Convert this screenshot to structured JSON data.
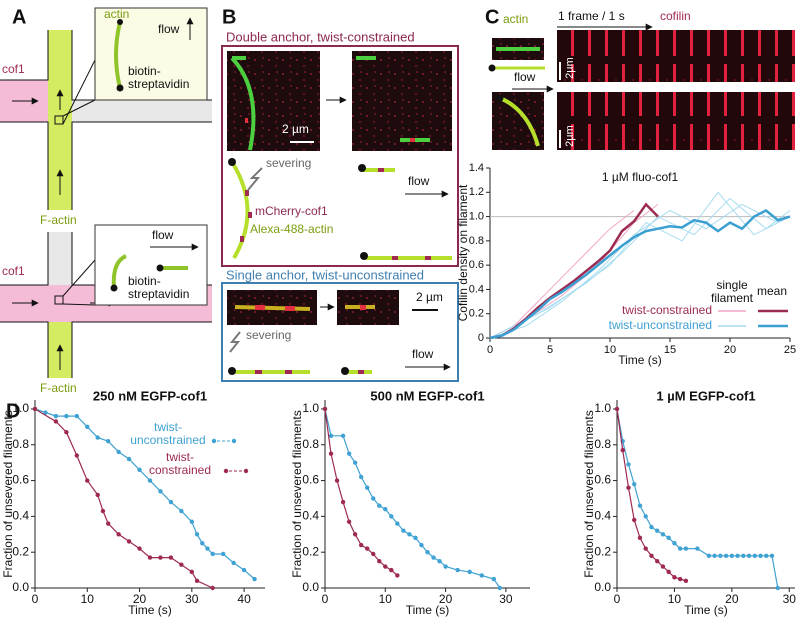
{
  "panel_labels": [
    "A",
    "B",
    "C",
    "D"
  ],
  "panel_a": {
    "top": {
      "actin": "actin",
      "flow": "flow",
      "anchor": "biotin-\nstreptavidin",
      "cof1": "cof1",
      "f_actin": "F-actin"
    },
    "bottom": {
      "flow": "flow",
      "anchor": "biotin-\nstreptavidin",
      "cof1": "cof1",
      "f_actin": "F-actin"
    }
  },
  "panel_b": {
    "double": {
      "title": "Double anchor, twist-constrained",
      "scale": "2 µm",
      "severing": "severing",
      "cofilin": "mCherry-cof1",
      "actin": "Alexa-488-actin",
      "flow": "flow"
    },
    "single": {
      "title": "Single anchor, twist-unconstrained",
      "scale": "2 µm",
      "severing": "severing",
      "flow": "flow"
    }
  },
  "panel_c": {
    "actin": "actin",
    "flow": "flow",
    "frame_rate": "1 frame / 1 s",
    "cofilin": "cofilin",
    "scale_top": "2µm",
    "scale_bottom": "2µm"
  },
  "chart_data": [
    {
      "type": "line",
      "title": "1 µM fluo-cof1",
      "x_label": "Time (s)",
      "y_label": "Cofilin density on filament",
      "xlim": [
        0,
        25
      ],
      "ylim": [
        0,
        1.4
      ],
      "xticks": [
        0,
        5,
        10,
        15,
        20,
        25
      ],
      "yticks": [
        0,
        0.2,
        0.4,
        0.6,
        0.8,
        {
          "value": 1,
          "label": "1.0"
        },
        1.2,
        1.4
      ],
      "hline": 1,
      "legend_titles": [
        "single\nfilament",
        "mean"
      ],
      "series": [
        {
          "name": "twist-constrained",
          "color": "#9b2b52",
          "single_color": "#f0a6c6",
          "x": [
            0,
            1,
            2,
            3,
            4,
            5,
            6,
            7,
            8,
            9,
            10,
            11,
            12,
            13,
            14
          ],
          "values": [
            0,
            0.02,
            0.08,
            0.16,
            0.25,
            0.33,
            0.4,
            0.47,
            0.55,
            0.63,
            0.72,
            0.88,
            0.96,
            1.1,
            1.0
          ],
          "single_filaments": [
            {
              "x": [
                0,
                2,
                4,
                6,
                8,
                10,
                12
              ],
              "values": [
                0,
                0.1,
                0.3,
                0.5,
                0.7,
                0.9,
                1.05
              ]
            },
            {
              "x": [
                0,
                3,
                6,
                9,
                12,
                14
              ],
              "values": [
                0,
                0.15,
                0.35,
                0.6,
                0.95,
                1.1
              ]
            }
          ]
        },
        {
          "name": "twist-unconstrained",
          "color": "#3c9fd2",
          "single_color": "#a6dcef",
          "x": [
            0,
            1,
            2,
            3,
            4,
            5,
            6,
            7,
            8,
            9,
            10,
            11,
            12,
            13,
            14,
            15,
            16,
            17,
            18,
            19,
            20,
            21,
            22,
            23,
            24,
            25
          ],
          "values": [
            0,
            0.02,
            0.07,
            0.15,
            0.23,
            0.32,
            0.38,
            0.45,
            0.52,
            0.6,
            0.68,
            0.76,
            0.83,
            0.88,
            0.9,
            0.92,
            0.91,
            0.97,
            0.95,
            0.88,
            0.95,
            0.9,
            1.0,
            1.05,
            0.97,
            1.0
          ],
          "single_filaments": [
            {
              "x": [
                0,
                3,
                6,
                9,
                12,
                15,
                18,
                21,
                24,
                25
              ],
              "values": [
                0,
                0.1,
                0.3,
                0.55,
                0.85,
                1.05,
                0.9,
                1.1,
                0.95,
                1.0
              ]
            },
            {
              "x": [
                0,
                4,
                8,
                11,
                14,
                17,
                20,
                23,
                25
              ],
              "values": [
                0,
                0.2,
                0.45,
                0.7,
                1.0,
                0.85,
                1.15,
                0.9,
                1.05
              ]
            },
            {
              "x": [
                0,
                5,
                10,
                13,
                16,
                19,
                22,
                25
              ],
              "values": [
                0,
                0.25,
                0.6,
                0.95,
                0.8,
                1.2,
                0.85,
                1.0
              ]
            }
          ]
        }
      ]
    },
    {
      "type": "line",
      "markers": true,
      "title": "250 nM EGFP-cof1",
      "x_label": "Time (s)",
      "y_label": "Fraction of unsevered filaments",
      "xlim": [
        0,
        44
      ],
      "ylim": [
        0,
        1.05
      ],
      "xticks": [
        0,
        10,
        20,
        30,
        40
      ],
      "yticks": [
        {
          "value": 0,
          "label": "0.0"
        },
        0.2,
        0.4,
        0.6,
        0.8,
        {
          "value": 1,
          "label": "1.0"
        }
      ],
      "series": [
        {
          "name": "twist-\nunconstrained",
          "color": "#3fa2d3",
          "x": [
            0,
            2,
            4,
            6,
            8,
            10,
            12,
            14,
            16,
            18,
            20,
            22,
            24,
            26,
            28,
            30,
            31,
            32,
            33,
            34,
            36,
            38,
            40,
            42
          ],
          "values": [
            1,
            0.98,
            0.96,
            0.96,
            0.96,
            0.9,
            0.84,
            0.82,
            0.76,
            0.72,
            0.66,
            0.6,
            0.54,
            0.48,
            0.43,
            0.37,
            0.3,
            0.25,
            0.22,
            0.19,
            0.19,
            0.14,
            0.1,
            0.05
          ]
        },
        {
          "name": "twist-\nconstrained",
          "color": "#9e2a50",
          "x": [
            0,
            4,
            6,
            8,
            10,
            12,
            13,
            14,
            16,
            18,
            20,
            22,
            24,
            26,
            28,
            30,
            31,
            34
          ],
          "values": [
            1,
            0.93,
            0.87,
            0.74,
            0.6,
            0.52,
            0.43,
            0.36,
            0.3,
            0.26,
            0.22,
            0.17,
            0.17,
            0.17,
            0.13,
            0.09,
            0.04,
            0
          ]
        }
      ]
    },
    {
      "type": "line",
      "markers": true,
      "title": "500 nM EGFP-cof1",
      "x_label": "Time (s)",
      "y_label": "Fraction of unsevered filaments",
      "xlim": [
        0,
        34
      ],
      "ylim": [
        0,
        1.05
      ],
      "xticks": [
        0,
        10,
        20,
        30
      ],
      "yticks": [
        {
          "value": 0,
          "label": "0.0"
        },
        0.2,
        0.4,
        0.6,
        0.8,
        {
          "value": 1,
          "label": "1.0"
        }
      ],
      "series": [
        {
          "color": "#3fa2d3",
          "x": [
            0,
            1,
            3,
            4,
            5,
            6,
            7,
            8,
            9,
            10,
            11,
            12,
            13,
            14,
            15,
            16,
            17,
            18,
            19,
            20,
            22,
            24,
            26,
            28,
            29
          ],
          "values": [
            1,
            0.85,
            0.85,
            0.75,
            0.7,
            0.62,
            0.56,
            0.5,
            0.46,
            0.44,
            0.4,
            0.36,
            0.32,
            0.3,
            0.28,
            0.24,
            0.2,
            0.17,
            0.15,
            0.12,
            0.1,
            0.09,
            0.07,
            0.05,
            0
          ]
        },
        {
          "color": "#9e2a50",
          "x": [
            0,
            1,
            2,
            3,
            4,
            5,
            6,
            7,
            8,
            9,
            10,
            11,
            12
          ],
          "values": [
            1,
            0.75,
            0.6,
            0.48,
            0.37,
            0.3,
            0.24,
            0.22,
            0.19,
            0.15,
            0.12,
            0.1,
            0.07
          ]
        }
      ]
    },
    {
      "type": "line",
      "markers": true,
      "title": "1 µM EGFP-cof1",
      "x_label": "Time (s)",
      "y_label": "Fraction of unsevered filaments",
      "xlim": [
        0,
        31
      ],
      "ylim": [
        0,
        1.05
      ],
      "xticks": [
        0,
        10,
        20,
        30
      ],
      "yticks": [
        {
          "value": 0,
          "label": "0.0"
        },
        0.2,
        0.4,
        0.6,
        0.8,
        {
          "value": 1,
          "label": "1.0"
        }
      ],
      "series": [
        {
          "color": "#3fa2d3",
          "x": [
            0,
            1,
            2,
            3,
            4,
            5,
            6,
            7,
            8,
            9,
            10,
            11,
            12,
            14,
            16,
            17,
            18,
            19,
            20,
            21,
            22,
            23,
            24,
            25,
            26,
            27,
            28
          ],
          "values": [
            1,
            0.82,
            0.69,
            0.58,
            0.46,
            0.4,
            0.34,
            0.32,
            0.3,
            0.28,
            0.25,
            0.22,
            0.22,
            0.22,
            0.18,
            0.18,
            0.18,
            0.18,
            0.18,
            0.18,
            0.18,
            0.18,
            0.18,
            0.18,
            0.18,
            0.18,
            0
          ]
        },
        {
          "color": "#9e2a50",
          "x": [
            0,
            1,
            2,
            3,
            4,
            5,
            6,
            7,
            8,
            9,
            10,
            11,
            12
          ],
          "values": [
            1,
            0.77,
            0.56,
            0.38,
            0.28,
            0.22,
            0.18,
            0.15,
            0.12,
            0.09,
            0.06,
            0.05,
            0.04
          ]
        }
      ]
    }
  ]
}
